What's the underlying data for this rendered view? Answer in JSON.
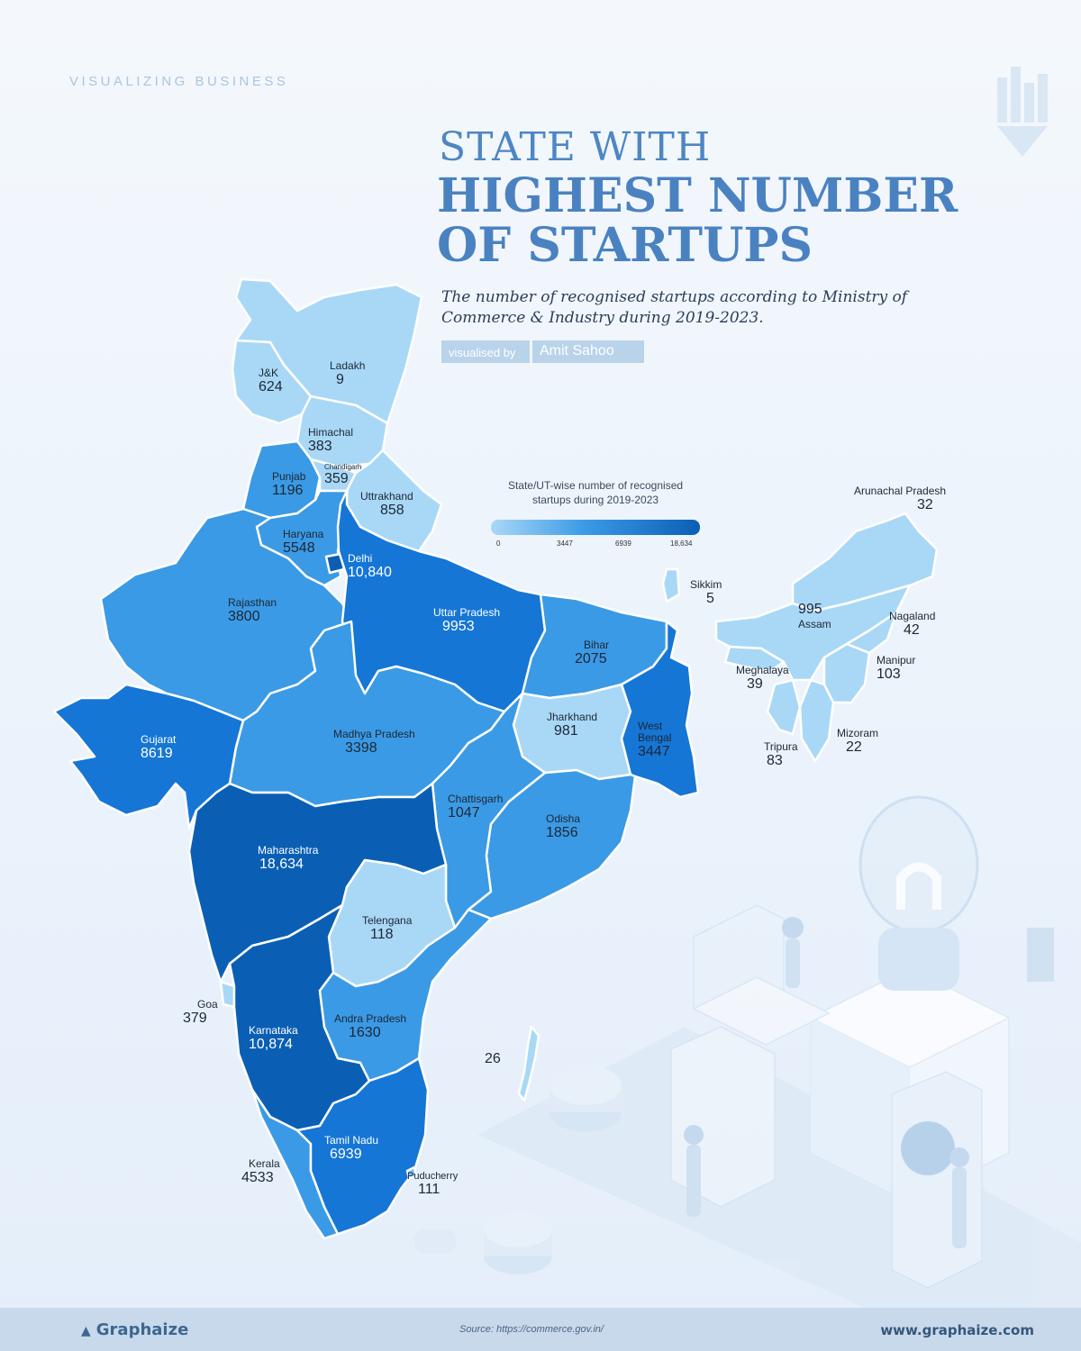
{
  "header": {
    "kicker": "VISUALIZING BUSINESS",
    "title_line1": "STATE WITH",
    "title_line2": "HIGHEST NUMBER",
    "title_line3": "OF STARTUPS",
    "subtitle": "The number of recognised startups according to Ministry of Commerce & Industry during 2019-2023.",
    "credit_label": "visualised by",
    "credit_name": "Amit Sahoo"
  },
  "legend": {
    "title_line1": "State/UT-wise number of recognised",
    "title_line2": "startups during 2019-2023",
    "ticks": [
      "0",
      "3447",
      "6939",
      "18,634"
    ]
  },
  "colors": {
    "c1": "#a9d8f7",
    "c2": "#77bdf0",
    "c3": "#3b9ae5",
    "c4": "#1576d6",
    "c5": "#0a5fb5",
    "border": "#ffffff"
  },
  "states": [
    {
      "name": "Ladakh",
      "value": "9"
    },
    {
      "name": "J&K",
      "value": "624"
    },
    {
      "name": "Himachal",
      "value": "383"
    },
    {
      "name": "Chandigarh",
      "value": "359"
    },
    {
      "name": "Punjab",
      "value": "1196"
    },
    {
      "name": "Uttrakhand",
      "value": "858"
    },
    {
      "name": "Haryana",
      "value": "5548"
    },
    {
      "name": "Delhi",
      "value": "10,840"
    },
    {
      "name": "Rajasthan",
      "value": "3800"
    },
    {
      "name": "Uttar Pradesh",
      "value": "9953"
    },
    {
      "name": "Bihar",
      "value": "2075"
    },
    {
      "name": "Sikkim",
      "value": "5"
    },
    {
      "name": "Arunachal Pradesh",
      "value": "32"
    },
    {
      "name": "Assam",
      "value": "995"
    },
    {
      "name": "Nagaland",
      "value": "42"
    },
    {
      "name": "Manipur",
      "value": "103"
    },
    {
      "name": "Meghalaya",
      "value": "39"
    },
    {
      "name": "Mizoram",
      "value": "22"
    },
    {
      "name": "Tripura",
      "value": "83"
    },
    {
      "name": "Gujarat",
      "value": "8619"
    },
    {
      "name": "Madhya Pradesh",
      "value": "3398"
    },
    {
      "name": "Jharkhand",
      "value": "981"
    },
    {
      "name": "West Bengal",
      "value": "3447"
    },
    {
      "name": "Chattisgarh",
      "value": "1047"
    },
    {
      "name": "Odisha",
      "value": "1856"
    },
    {
      "name": "Maharashtra",
      "value": "18,634"
    },
    {
      "name": "Telengana",
      "value": "118"
    },
    {
      "name": "Goa",
      "value": "379"
    },
    {
      "name": "Karnataka",
      "value": "10,874"
    },
    {
      "name": "Andra Pradesh",
      "value": "1630"
    },
    {
      "name": "Kerala",
      "value": "4533"
    },
    {
      "name": "Tamil Nadu",
      "value": "6939"
    },
    {
      "name": "Puducherry",
      "value": "111"
    },
    {
      "name": "",
      "value": "26"
    }
  ],
  "footer": {
    "brand": "Graphaize",
    "source": "Source: https://commerce.gov.in/",
    "website": "www.graphaize.com"
  }
}
